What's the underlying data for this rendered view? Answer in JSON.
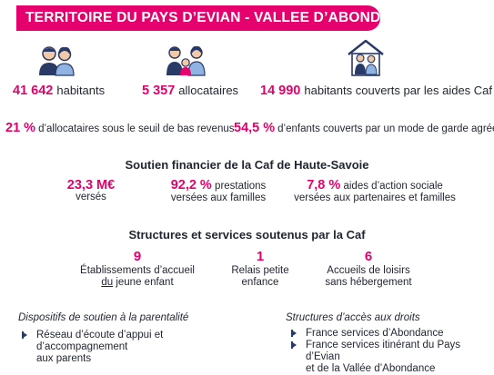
{
  "header": {
    "title": "TERRITOIRE DU PAYS D’EVIAN - VALLEE D’ABONDANCE"
  },
  "colors": {
    "accent": "#e5006d",
    "icon": "#2a3a66",
    "icon_light": "#8fb4e3"
  },
  "icons": [
    "couple-icon",
    "family-icon",
    "house-family-icon"
  ],
  "stats_top": [
    {
      "value": "41 642",
      "label": "habitants"
    },
    {
      "value": "5 357",
      "label": "allocataires"
    },
    {
      "value": "14 990",
      "label": "habitants couverts par les aides Caf"
    }
  ],
  "stats_mid": [
    {
      "value": "21 %",
      "label": "d’allocataires sous le seuil de bas revenus"
    },
    {
      "value": "54,5 %",
      "label": "d’enfants couverts par un mode de garde agréé Caf"
    }
  ],
  "financial": {
    "title": "Soutien financier de la Caf de Haute-Savoie",
    "items": [
      {
        "value": "23,3 M€",
        "line1": "",
        "line2": "versés"
      },
      {
        "value": "92,2 %",
        "line1": "prestations",
        "line2": "versées aux familles"
      },
      {
        "value": "7,8 %",
        "line1": "aides d’action sociale",
        "line2": "versées aux partenaires et familles"
      }
    ]
  },
  "structures": {
    "title": "Structures et services soutenus par la Caf",
    "items": [
      {
        "value": "9",
        "line1": "Établissements d’accueil",
        "line2a": "du",
        "line2b": " jeune enfant"
      },
      {
        "value": "1",
        "line1": "Relais petite",
        "line2": "enfance"
      },
      {
        "value": "6",
        "line1": "Accueils de loisirs",
        "line2": "sans hébergement"
      }
    ]
  },
  "dispositifs": {
    "title": "Dispositifs de soutien à la parentalité",
    "items": [
      {
        "line1": "Réseau d’écoute d’appui et d’accompagnement",
        "line2": "aux parents"
      }
    ]
  },
  "acces": {
    "title": "Structures d’accès aux droits",
    "items": [
      {
        "line1": "France services d’Abondance",
        "line2": ""
      },
      {
        "line1": "France services itinérant du Pays d’Evian",
        "line2": "et de la Vallée d’Abondance"
      }
    ]
  }
}
